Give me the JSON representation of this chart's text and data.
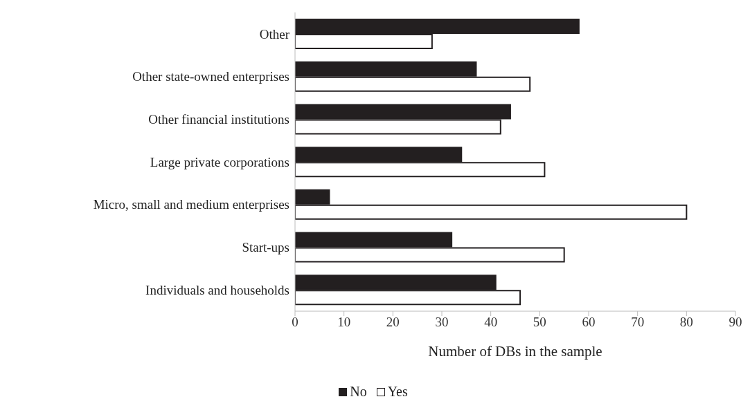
{
  "chart_data": {
    "type": "bar",
    "orientation": "horizontal",
    "xlabel": "Number of DBs in the sample",
    "categories": [
      "Other",
      "Other state-owned enterprises",
      "Other financial institutions",
      "Large private corporations",
      "Micro, small and medium enterprises",
      "Start-ups",
      "Individuals and households"
    ],
    "series": [
      {
        "name": "No",
        "color": "#231f20",
        "values": [
          58,
          37,
          44,
          34,
          7,
          32,
          41
        ]
      },
      {
        "name": "Yes",
        "color": "#ffffff",
        "values": [
          28,
          48,
          42,
          51,
          80,
          55,
          46
        ]
      }
    ],
    "xlim": [
      0,
      90
    ],
    "xticks": [
      0,
      10,
      20,
      30,
      40,
      50,
      60,
      70,
      80,
      90
    ],
    "grid": false,
    "legend": "bottom"
  }
}
